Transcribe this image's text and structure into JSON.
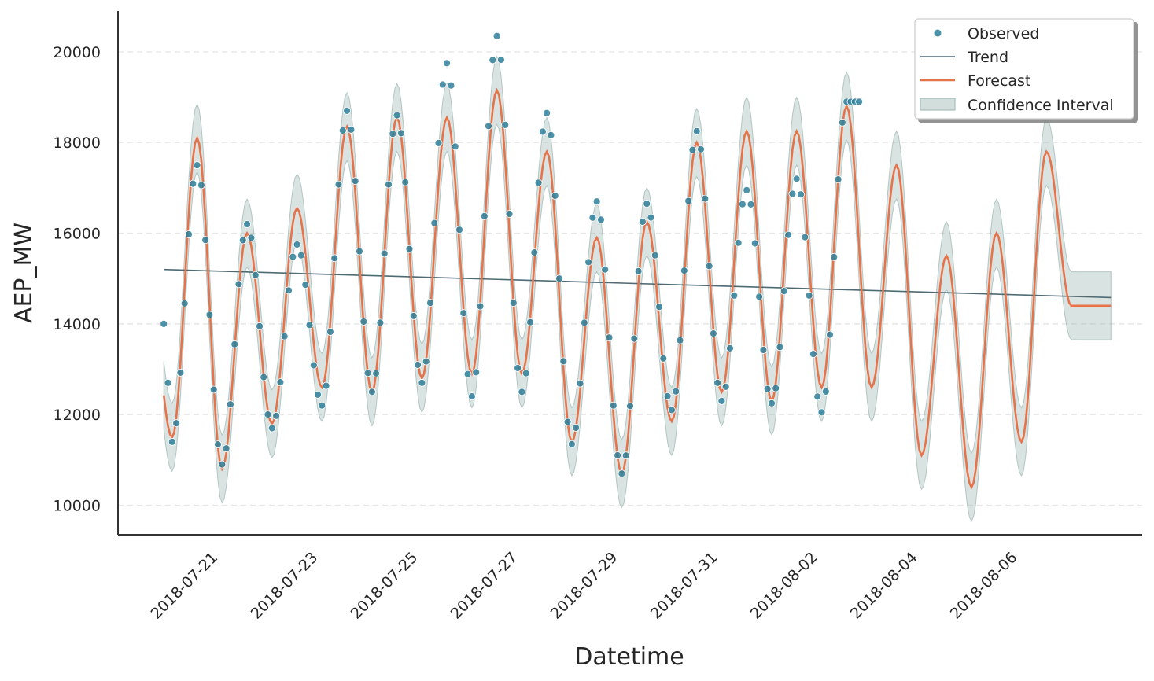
{
  "chart_data": {
    "type": "line",
    "title": "",
    "xlabel": "Datetime",
    "ylabel": "AEP_MW",
    "x_start": "2018-07-20 00:00",
    "x_end": "2018-08-07 23:00",
    "xlim": [
      "2018-07-19 02:00",
      "2018-08-08 14:00"
    ],
    "ylim": [
      9350,
      20900
    ],
    "x_ticks": [
      "2018-07-21",
      "2018-07-23",
      "2018-07-25",
      "2018-07-27",
      "2018-07-29",
      "2018-07-31",
      "2018-08-02",
      "2018-08-04",
      "2018-08-06"
    ],
    "y_ticks": [
      10000,
      12000,
      14000,
      16000,
      18000,
      20000
    ],
    "grid": "horizontal-dashed",
    "legend": {
      "position": "top-right",
      "entries": [
        "Observed",
        "Trend",
        "Forecast",
        "Confidence Interval"
      ]
    },
    "colors": {
      "observed": "#2e7f99",
      "trend": "#4e6a73",
      "forecast": "#e6734a",
      "confidence": "#9bb5b0"
    },
    "trend": {
      "start": 15200,
      "end": 14580
    },
    "daily_cycle": [
      {
        "date": "2018-07-20",
        "min": 11500,
        "max": 18100
      },
      {
        "date": "2018-07-21",
        "min": 10800,
        "max": 16000
      },
      {
        "date": "2018-07-22",
        "min": 11800,
        "max": 16550
      },
      {
        "date": "2018-07-23",
        "min": 12600,
        "max": 18350
      },
      {
        "date": "2018-07-24",
        "min": 12500,
        "max": 18550
      },
      {
        "date": "2018-07-25",
        "min": 12800,
        "max": 18550
      },
      {
        "date": "2018-07-26",
        "min": 12900,
        "max": 19150
      },
      {
        "date": "2018-07-27",
        "min": 12900,
        "max": 17800
      },
      {
        "date": "2018-07-28",
        "min": 11400,
        "max": 15900
      },
      {
        "date": "2018-07-29",
        "min": 10700,
        "max": 16250
      },
      {
        "date": "2018-07-30",
        "min": 11850,
        "max": 18000
      },
      {
        "date": "2018-07-31",
        "min": 12500,
        "max": 18250
      },
      {
        "date": "2018-08-01",
        "min": 12300,
        "max": 18250
      },
      {
        "date": "2018-08-02",
        "min": 12600,
        "max": 18800
      },
      {
        "date": "2018-08-03",
        "min": 12600,
        "max": 17500
      },
      {
        "date": "2018-08-04",
        "min": 11100,
        "max": 15500
      },
      {
        "date": "2018-08-05",
        "min": 10400,
        "max": 16000
      },
      {
        "date": "2018-08-06",
        "min": 11400,
        "max": 17800
      },
      {
        "date": "2018-08-07",
        "min": 14400,
        "max": 14400
      }
    ],
    "confidence_halfwidth": 750,
    "observed_days": [
      {
        "date": "2018-07-20",
        "min": 11400,
        "max": 17500
      },
      {
        "date": "2018-07-21",
        "min": 10900,
        "max": 16200
      },
      {
        "date": "2018-07-22",
        "min": 11700,
        "max": 15750
      },
      {
        "date": "2018-07-23",
        "min": 12200,
        "max": 18700
      },
      {
        "date": "2018-07-24",
        "min": 12500,
        "max": 18600
      },
      {
        "date": "2018-07-25",
        "min": 12700,
        "max": 19750
      },
      {
        "date": "2018-07-26",
        "min": 12400,
        "max": 20350
      },
      {
        "date": "2018-07-27",
        "min": 12500,
        "max": 18650
      },
      {
        "date": "2018-07-28",
        "min": 11350,
        "max": 16700
      },
      {
        "date": "2018-07-29",
        "min": 10700,
        "max": 16650
      },
      {
        "date": "2018-07-30",
        "min": 12100,
        "max": 18250
      },
      {
        "date": "2018-07-31",
        "min": 12300,
        "max": 16950
      },
      {
        "date": "2018-08-01",
        "min": 12250,
        "max": 17200
      },
      {
        "date": "2018-08-02",
        "min": 12050,
        "max": 18900
      }
    ]
  }
}
